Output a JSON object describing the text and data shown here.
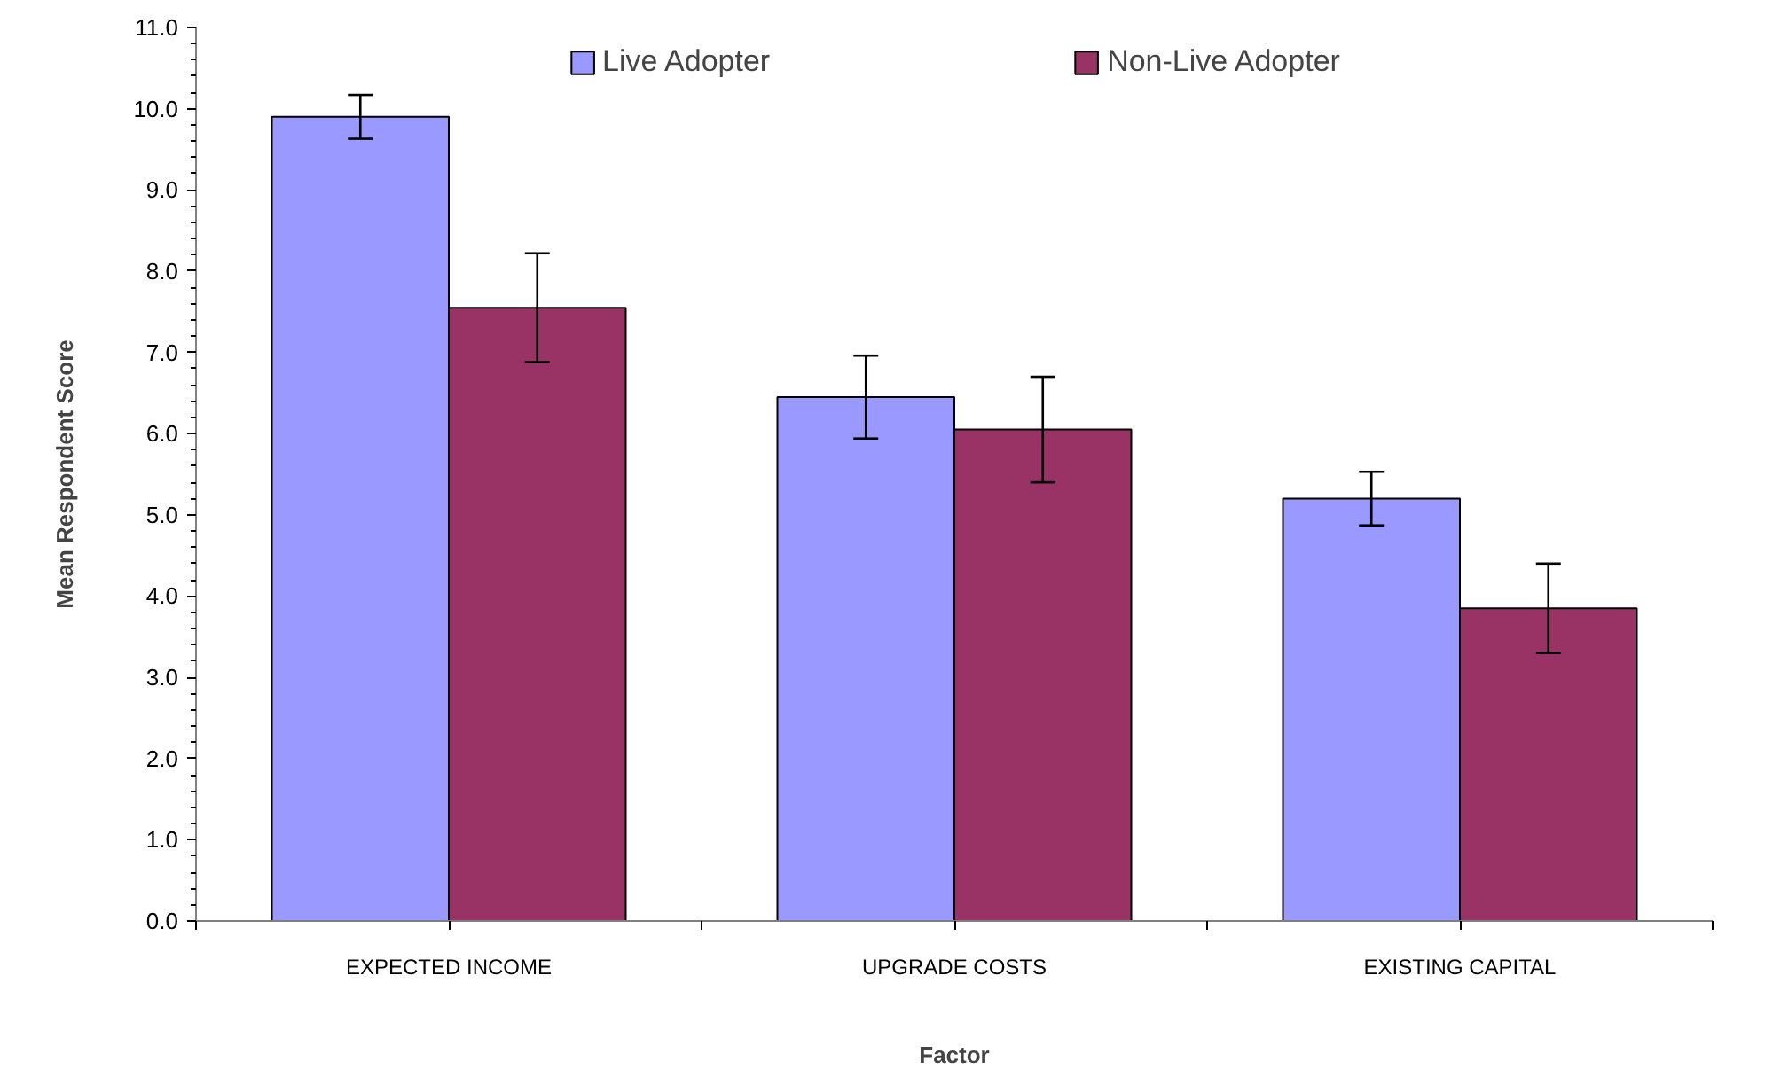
{
  "chart_data": {
    "type": "bar",
    "xlabel": "Factor",
    "ylabel": "Mean Respondent Score",
    "categories": [
      "EXPECTED INCOME",
      "UPGRADE COSTS",
      "EXISTING CAPITAL"
    ],
    "series": [
      {
        "name": "Live Adopter",
        "color": "#9999ff",
        "values": [
          9.9,
          6.45,
          5.2
        ],
        "errors": [
          0.27,
          0.51,
          0.33
        ]
      },
      {
        "name": "Non-Live Adopter",
        "color": "#993366",
        "values": [
          7.55,
          6.05,
          3.85
        ],
        "errors": [
          0.67,
          0.65,
          0.55
        ]
      }
    ],
    "ylim": [
      0,
      11
    ],
    "yticks": [
      {
        "value": 0,
        "label": "0.0"
      },
      {
        "value": 1,
        "label": "1.0"
      },
      {
        "value": 2,
        "label": "2.0"
      },
      {
        "value": 3,
        "label": "3.0"
      },
      {
        "value": 4,
        "label": "4.0"
      },
      {
        "value": 5,
        "label": "5.0"
      },
      {
        "value": 6,
        "label": "6.0"
      },
      {
        "value": 7,
        "label": "7.0"
      },
      {
        "value": 8,
        "label": "8.0"
      },
      {
        "value": 9,
        "label": "9.0"
      },
      {
        "value": 10,
        "label": "10.0"
      },
      {
        "value": 11,
        "label": "11.0"
      }
    ],
    "grid": false,
    "legend": "top"
  }
}
